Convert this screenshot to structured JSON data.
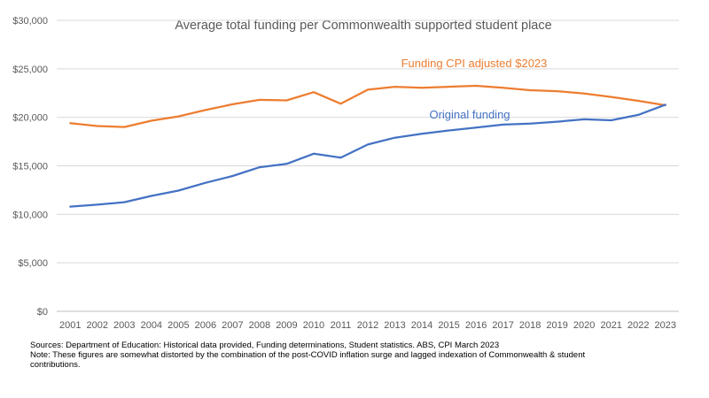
{
  "chart_data": {
    "type": "line",
    "title": "Average total funding per Commonwealth supported student place",
    "xlabel": "",
    "ylabel": "",
    "categories": [
      "2001",
      "2002",
      "2003",
      "2004",
      "2005",
      "2006",
      "2007",
      "2008",
      "2009",
      "2010",
      "2011",
      "2012",
      "2013",
      "2014",
      "2015",
      "2016",
      "2017",
      "2018",
      "2019",
      "2020",
      "2021",
      "2022",
      "2023"
    ],
    "ylim": [
      0,
      30000
    ],
    "yticks": [
      0,
      5000,
      10000,
      15000,
      20000,
      25000,
      30000
    ],
    "ytick_labels": [
      "$0",
      "$5,000",
      "$10,000",
      "$15,000",
      "$20,000",
      "$25,000",
      "$30,000"
    ],
    "grid": true,
    "legend": "inline labels",
    "series": [
      {
        "name": "Funding CPI adjusted $2023",
        "color": "#ED7D31",
        "values": [
          19400,
          19100,
          19000,
          19650,
          20100,
          20750,
          21350,
          21800,
          21750,
          22600,
          21400,
          22850,
          23150,
          23050,
          23150,
          23250,
          23050,
          22800,
          22700,
          22450,
          22100,
          21700,
          21250
        ]
      },
      {
        "name": "Original funding",
        "color": "#4472C4",
        "values": [
          10800,
          11000,
          11250,
          11900,
          12450,
          13250,
          13950,
          14850,
          15200,
          16250,
          15850,
          17200,
          17900,
          18300,
          18650,
          18950,
          19250,
          19350,
          19550,
          19800,
          19700,
          20250,
          21300
        ]
      }
    ]
  },
  "footer": {
    "sources": "Sources: Department of Education: Historical data provided, Funding determinations, Student statistics. ABS, CPI March 2023",
    "note": "Note: These figures are somewhat distorted by the combination of the post-COVID inflation surge and lagged indexation of Commonwealth & student contributions."
  }
}
